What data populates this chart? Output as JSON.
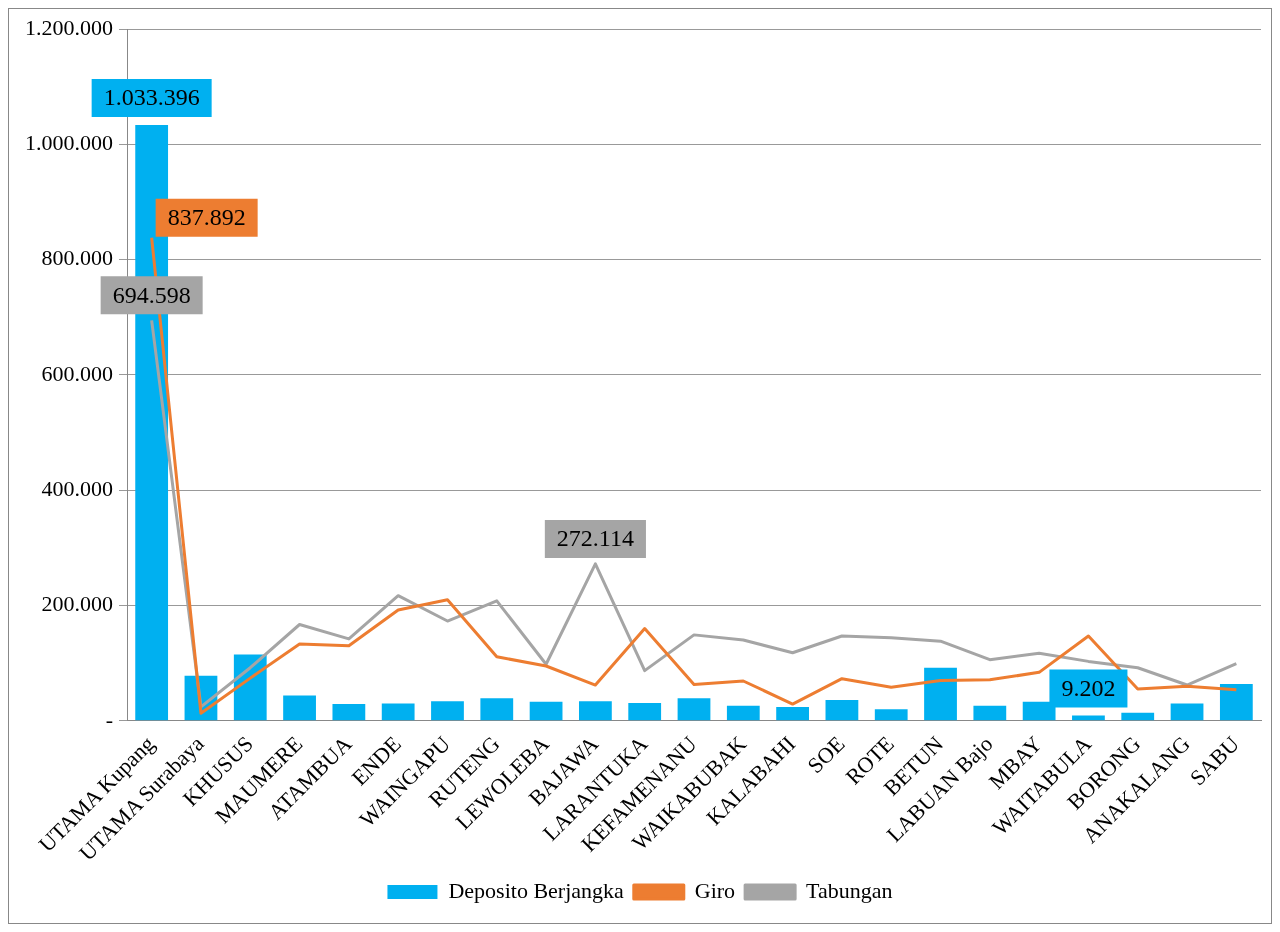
{
  "chart_data": {
    "type": "bar",
    "categories": [
      "UTAMA Kupang",
      "UTAMA Surabaya",
      "KHUSUS",
      "MAUMERE",
      "ATAMBUA",
      "ENDE",
      "WAINGAPU",
      "RUTENG",
      "LEWOLEBA",
      "BAJAWA",
      "LARANTUKA",
      "KEFAMENANU",
      "WAIKABUBAK",
      "KALABAHI",
      "SOE",
      "ROTE",
      "BETUN",
      "LABUAN Bajo",
      "MBAY",
      "WAITABULA",
      "BORONG",
      "ANAKALANG",
      "SABU"
    ],
    "series": [
      {
        "name": "Deposito Berjangka",
        "color": "#00b0f0",
        "values": [
          1033396,
          78000,
          115000,
          44000,
          29000,
          30000,
          34000,
          39000,
          33000,
          34000,
          31000,
          39000,
          26000,
          24000,
          36000,
          20000,
          92000,
          26000,
          33000,
          9202,
          14000,
          30000,
          64000
        ],
        "value_labels": [
          "1.033.396",
          null,
          null,
          null,
          null,
          null,
          null,
          null,
          null,
          null,
          null,
          null,
          null,
          null,
          null,
          null,
          null,
          null,
          null,
          "9.202",
          null,
          null,
          null
        ]
      },
      {
        "name": "Giro",
        "type": "line",
        "color": "#ed7d31",
        "values": [
          837892,
          13000,
          74000,
          133000,
          130000,
          192000,
          210000,
          111000,
          95000,
          62000,
          160000,
          63000,
          69000,
          29000,
          73000,
          58000,
          70000,
          71000,
          84000,
          147000,
          55000,
          60000,
          54000
        ],
        "value_labels": [
          "837.892",
          null,
          null,
          null,
          null,
          null,
          null,
          null,
          null,
          null,
          null,
          null,
          null,
          null,
          null,
          null,
          null,
          null,
          null,
          null,
          null,
          null,
          null
        ]
      },
      {
        "name": "Tabungan",
        "type": "line",
        "color": "#a5a5a5",
        "values": [
          694598,
          24000,
          92000,
          167000,
          142000,
          217000,
          173000,
          208000,
          98000,
          272114,
          87000,
          149000,
          140000,
          118000,
          147000,
          144000,
          138000,
          106000,
          117000,
          103000,
          92000,
          62000,
          99000
        ],
        "value_labels": [
          "694.598",
          null,
          null,
          null,
          null,
          null,
          null,
          null,
          null,
          "272.114",
          null,
          null,
          null,
          null,
          null,
          null,
          null,
          null,
          null,
          null,
          null,
          null,
          null
        ]
      }
    ],
    "ylim": [
      0,
      1200000
    ],
    "yticks": [
      {
        "value": 0,
        "label": "-"
      },
      {
        "value": 200000,
        "label": "200.000"
      },
      {
        "value": 400000,
        "label": "400.000"
      },
      {
        "value": 600000,
        "label": "600.000"
      },
      {
        "value": 800000,
        "label": "800.000"
      },
      {
        "value": 1000000,
        "label": "1.000.000"
      },
      {
        "value": 1200000,
        "label": "1.200.000"
      }
    ],
    "grid": "y",
    "legend": "bottom",
    "marker": "none"
  }
}
